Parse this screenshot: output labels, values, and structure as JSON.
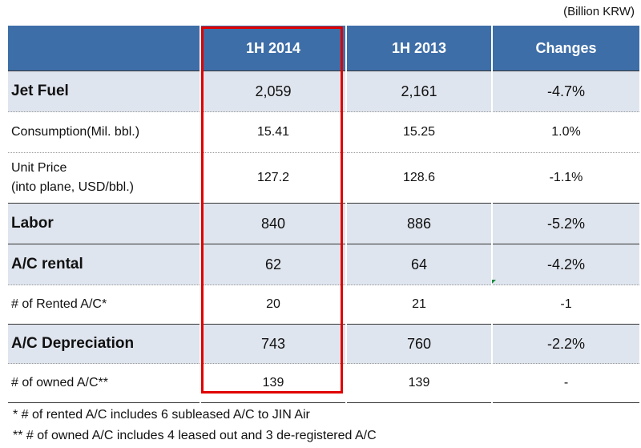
{
  "unit_note": "(Billion KRW)",
  "table": {
    "headers": [
      "",
      "1H 2014",
      "1H 2013",
      "Changes"
    ],
    "rows": [
      {
        "label": "Jet Fuel",
        "v2014": "2,059",
        "v2013": "2,161",
        "change": "-4.7%"
      },
      {
        "label": "Consumption(Mil. bbl.)",
        "v2014": "15.41",
        "v2013": "15.25",
        "change": "1.0%"
      },
      {
        "label_line1": "Unit Price",
        "label_line2": "(into plane, USD/bbl.)",
        "v2014": "127.2",
        "v2013": "128.6",
        "change": "-1.1%"
      },
      {
        "label": "Labor",
        "v2014": "840",
        "v2013": "886",
        "change": "-5.2%"
      },
      {
        "label": "A/C rental",
        "v2014": "62",
        "v2013": "64",
        "change": "-4.2%"
      },
      {
        "label": "# of Rented A/C*",
        "v2014": "20",
        "v2013": "21",
        "change": "-1"
      },
      {
        "label": "A/C Depreciation",
        "v2014": "743",
        "v2013": "760",
        "change": "-2.2%"
      },
      {
        "label": "# of owned A/C**",
        "v2014": "139",
        "v2013": "139",
        "change": "-"
      }
    ]
  },
  "footnotes": [
    "* # of rented A/C includes 6 subleased A/C to JIN Air",
    "** # of owned A/C includes 4 leased out and 3 de-registered A/C"
  ],
  "colors": {
    "header_bg": "#3e6ea8",
    "major_row_bg": "#dfe5ee",
    "highlight_border": "#e00000"
  }
}
